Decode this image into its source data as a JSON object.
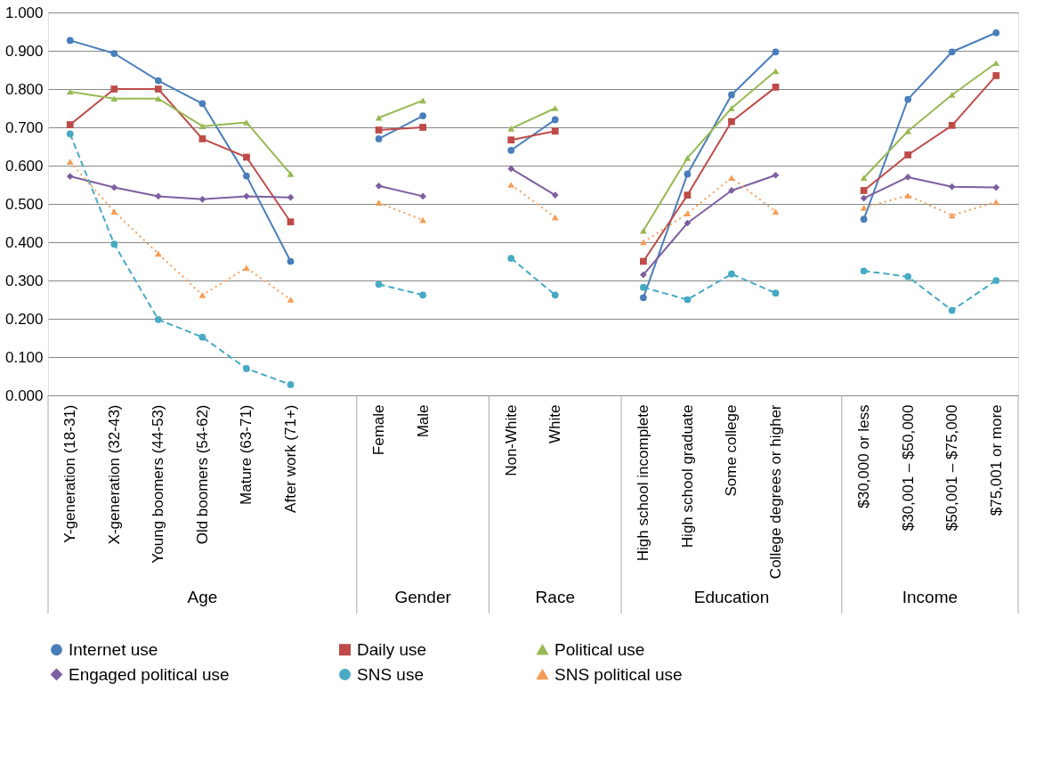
{
  "chart_data": {
    "type": "line",
    "categories": [
      "Y-generation (18-31)",
      "X-generation (32-43)",
      "Young boomers (44-53)",
      "Old boomers (54-62)",
      "Mature (63-71)",
      "After work (71+)",
      null,
      "Female",
      "Male",
      null,
      "Non-White",
      "White",
      null,
      "High school incomplete",
      "High school graduate",
      "Some college",
      "College degrees or higher",
      null,
      "$30,000 or less",
      "$30,001 – $50,000",
      "$50,001 – $75,000",
      "$75,001 or more"
    ],
    "annotations": [
      "Age",
      "Gender",
      "Race",
      "Education",
      "Income"
    ],
    "ylim": [
      0,
      1
    ],
    "yticks": [
      {
        "value": 0,
        "label": "0.000"
      },
      {
        "value": 0.1,
        "label": "0.100"
      },
      {
        "value": 0.2,
        "label": "0.200"
      },
      {
        "value": 0.3,
        "label": "0.300"
      },
      {
        "value": 0.4,
        "label": "0.400"
      },
      {
        "value": 0.5,
        "label": "0.500"
      },
      {
        "value": 0.6,
        "label": "0.600"
      },
      {
        "value": 0.7,
        "label": "0.700"
      },
      {
        "value": 0.8,
        "label": "0.800"
      },
      {
        "value": 0.9,
        "label": "0.900"
      },
      {
        "value": 1,
        "label": "1.000"
      }
    ],
    "grid": "y",
    "legend": "bottom",
    "series": [
      {
        "name": "Internet use",
        "color": "#4a7ebb",
        "marker": "circle",
        "line_style": "solid",
        "values": [
          0.927,
          0.893,
          0.822,
          0.762,
          0.573,
          0.35,
          null,
          0.67,
          0.73,
          null,
          0.64,
          0.72,
          null,
          0.255,
          0.578,
          0.785,
          0.897,
          null,
          0.46,
          0.773,
          0.897,
          0.947
        ]
      },
      {
        "name": "Daily use",
        "color": "#be4b48",
        "marker": "square",
        "line_style": "solid",
        "values": [
          0.707,
          0.8,
          0.8,
          0.67,
          0.622,
          0.453,
          null,
          0.693,
          0.7,
          null,
          0.667,
          0.69,
          null,
          0.35,
          0.523,
          0.715,
          0.805,
          null,
          0.535,
          0.628,
          0.705,
          0.835
        ]
      },
      {
        "name": "Political use",
        "color": "#98b954",
        "marker": "triangle",
        "line_style": "solid",
        "values": [
          0.793,
          0.775,
          0.775,
          0.703,
          0.713,
          0.578,
          null,
          0.725,
          0.77,
          null,
          0.697,
          0.75,
          null,
          0.43,
          0.62,
          0.75,
          0.847,
          null,
          0.568,
          0.69,
          0.785,
          0.868
        ]
      },
      {
        "name": "Engaged political use",
        "color": "#7d5fa0",
        "marker": "diamond",
        "line_style": "solid",
        "values": [
          0.572,
          0.543,
          0.52,
          0.512,
          0.52,
          0.517,
          null,
          0.547,
          0.52,
          null,
          0.592,
          0.523,
          null,
          0.315,
          0.45,
          0.535,
          0.575,
          null,
          0.515,
          0.57,
          0.545,
          0.543
        ]
      },
      {
        "name": "SNS use",
        "color": "#46aac5",
        "marker": "circle",
        "line_style": "dashed",
        "values": [
          0.683,
          0.395,
          0.198,
          0.152,
          0.07,
          0.028,
          null,
          0.29,
          0.262,
          null,
          0.358,
          0.262,
          null,
          0.282,
          0.25,
          0.317,
          0.267,
          null,
          0.325,
          0.31,
          0.222,
          0.3
        ]
      },
      {
        "name": "SNS political use",
        "color": "#f59d56",
        "marker": "triangle",
        "line_style": "dotted",
        "values": [
          0.61,
          0.48,
          0.37,
          0.262,
          0.333,
          0.25,
          null,
          0.503,
          0.458,
          null,
          0.55,
          0.465,
          null,
          0.4,
          0.475,
          0.568,
          0.48,
          null,
          0.49,
          0.522,
          0.47,
          0.505
        ]
      }
    ]
  }
}
